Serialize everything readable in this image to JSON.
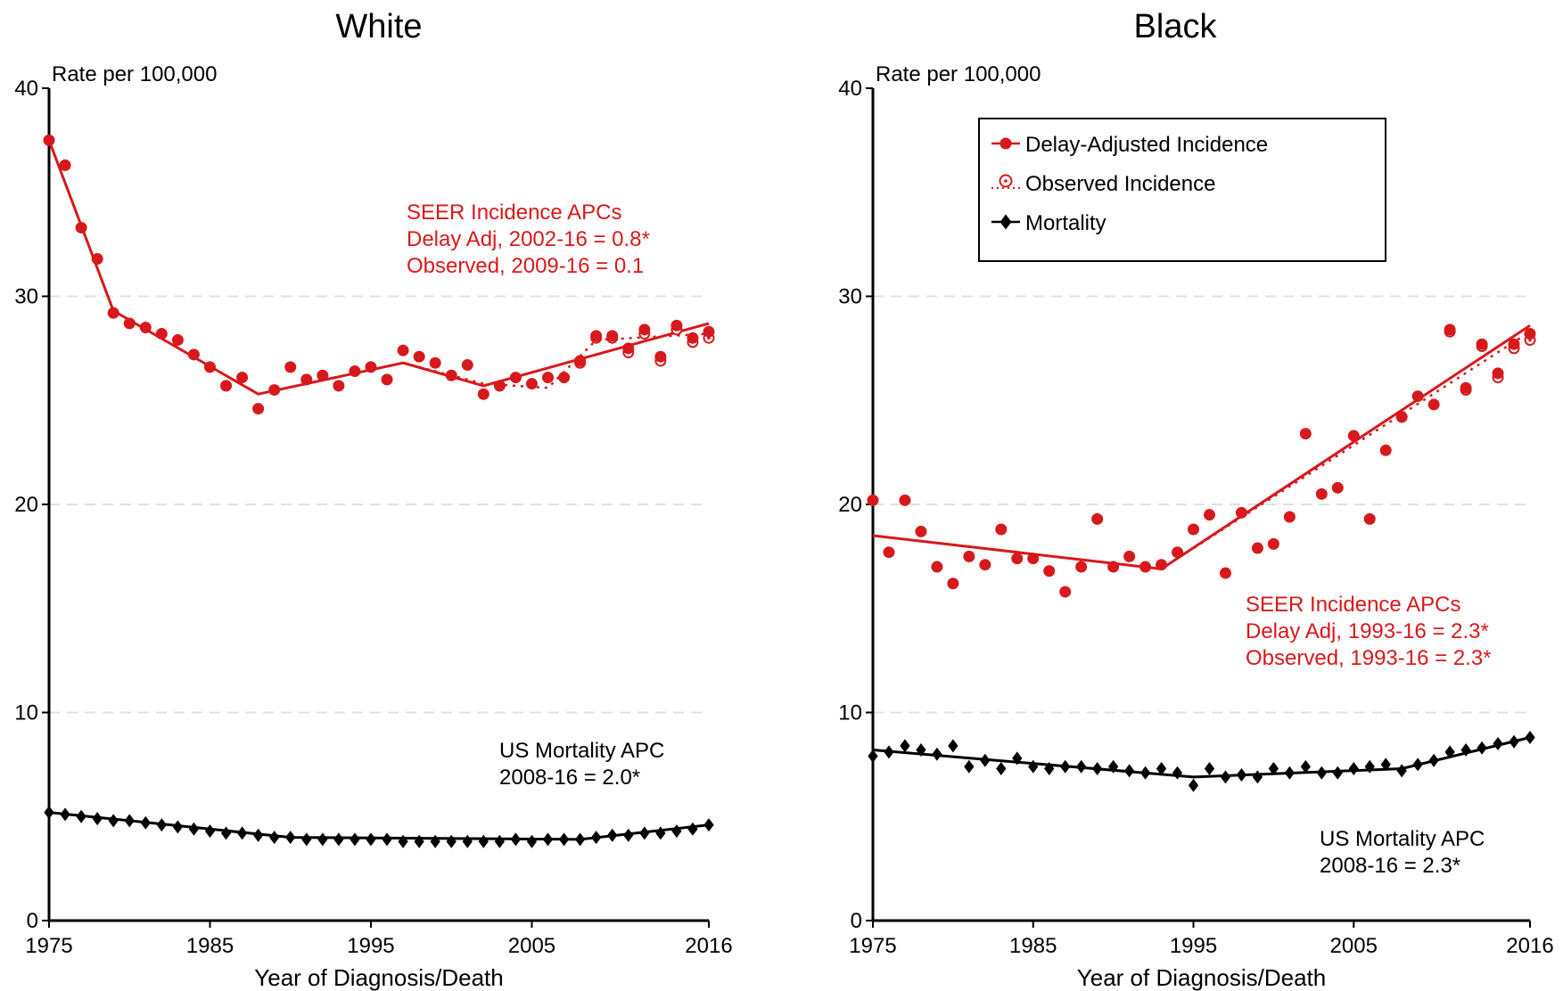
{
  "chart_data": [
    {
      "type": "line",
      "title": "White",
      "ylabel": "Rate per 100,000",
      "xlabel": "Year of Diagnosis/Death",
      "xlim": [
        1975,
        2016
      ],
      "ylim": [
        0,
        40
      ],
      "xticks": [
        1975,
        1985,
        1995,
        2005,
        2016
      ],
      "yticks": [
        0,
        10,
        20,
        30,
        40
      ],
      "grid": "horizontal dashed at 10, 20, 30",
      "legend": "none",
      "colors": {
        "incidence": "#d7191c",
        "mortality": "#000000",
        "grid": "#e0e0e0"
      },
      "x": [
        1975,
        1976,
        1977,
        1978,
        1979,
        1980,
        1981,
        1982,
        1983,
        1984,
        1985,
        1986,
        1987,
        1988,
        1989,
        1990,
        1991,
        1992,
        1993,
        1994,
        1995,
        1996,
        1997,
        1998,
        1999,
        2000,
        2001,
        2002,
        2003,
        2004,
        2005,
        2006,
        2007,
        2008,
        2009,
        2010,
        2011,
        2012,
        2013,
        2014,
        2015,
        2016
      ],
      "series": [
        {
          "role": "delay-adjusted-incidence",
          "marker": "filled-circle",
          "values": [
            37.5,
            36.3,
            33.3,
            31.8,
            29.2,
            28.7,
            28.5,
            28.2,
            27.9,
            27.2,
            26.6,
            25.7,
            26.1,
            24.6,
            25.5,
            26.6,
            26.0,
            26.2,
            25.7,
            26.4,
            26.6,
            26.0,
            27.4,
            27.1,
            26.8,
            26.2,
            26.7,
            25.3,
            25.7,
            26.1,
            25.8,
            26.1,
            26.1,
            26.9,
            28.1,
            28.1,
            27.5,
            28.4,
            27.1,
            28.6,
            28.0,
            28.3
          ]
        },
        {
          "role": "observed-incidence",
          "marker": "open-circle",
          "values": [
            37.5,
            36.3,
            33.3,
            31.8,
            29.2,
            28.7,
            28.5,
            28.2,
            27.9,
            27.2,
            26.6,
            25.7,
            26.1,
            24.6,
            25.5,
            26.6,
            26.0,
            26.2,
            25.7,
            26.4,
            26.6,
            26.0,
            27.4,
            27.1,
            26.8,
            26.2,
            26.7,
            25.3,
            25.7,
            26.1,
            25.8,
            26.1,
            26.1,
            26.8,
            28.0,
            28.0,
            27.3,
            28.2,
            26.9,
            28.4,
            27.8,
            28.0
          ]
        },
        {
          "role": "mortality",
          "marker": "filled-diamond",
          "values": [
            5.2,
            5.1,
            5.0,
            4.9,
            4.8,
            4.8,
            4.7,
            4.6,
            4.5,
            4.4,
            4.3,
            4.2,
            4.2,
            4.1,
            4.0,
            4.0,
            3.9,
            3.9,
            3.9,
            3.9,
            3.9,
            3.9,
            3.8,
            3.8,
            3.8,
            3.8,
            3.8,
            3.8,
            3.8,
            3.9,
            3.8,
            3.9,
            3.9,
            3.9,
            4.0,
            4.1,
            4.1,
            4.2,
            4.2,
            4.3,
            4.4,
            4.6
          ]
        }
      ],
      "fits": {
        "delay_adjusted": [
          [
            1975,
            37.5
          ],
          [
            1979,
            29.3
          ],
          [
            1988,
            25.3
          ],
          [
            1997,
            26.8
          ],
          [
            2002,
            25.7
          ],
          [
            2016,
            28.7
          ]
        ],
        "observed": [
          [
            1975,
            37.5
          ],
          [
            1979,
            29.3
          ],
          [
            1988,
            25.3
          ],
          [
            1997,
            26.8
          ],
          [
            2002,
            25.8
          ],
          [
            2006,
            25.6
          ],
          [
            2009,
            27.9
          ],
          [
            2016,
            28.2
          ]
        ],
        "mortality": [
          [
            1975,
            5.2
          ],
          [
            1990,
            4.0
          ],
          [
            2008,
            3.9
          ],
          [
            2016,
            4.6
          ]
        ]
      },
      "annotations": {
        "incidence": [
          "SEER Incidence APCs",
          "Delay Adj, 2002-16 = 0.8*",
          "Observed, 2009-16 = 0.1"
        ],
        "mortality": [
          "US Mortality APC",
          "2008-16 = 2.0*"
        ]
      }
    },
    {
      "type": "line",
      "title": "Black",
      "ylabel": "Rate per 100,000",
      "xlabel": "Year of Diagnosis/Death",
      "xlim": [
        1975,
        2016
      ],
      "ylim": [
        0,
        40
      ],
      "xticks": [
        1975,
        1985,
        1995,
        2005,
        2016
      ],
      "yticks": [
        0,
        10,
        20,
        30,
        40
      ],
      "grid": "horizontal dashed at 10, 20, 30",
      "legend": "top-left",
      "colors": {
        "incidence": "#d7191c",
        "mortality": "#000000",
        "grid": "#e0e0e0"
      },
      "x": [
        1975,
        1976,
        1977,
        1978,
        1979,
        1980,
        1981,
        1982,
        1983,
        1984,
        1985,
        1986,
        1987,
        1988,
        1989,
        1990,
        1991,
        1992,
        1993,
        1994,
        1995,
        1996,
        1997,
        1998,
        1999,
        2000,
        2001,
        2002,
        2003,
        2004,
        2005,
        2006,
        2007,
        2008,
        2009,
        2010,
        2011,
        2012,
        2013,
        2014,
        2015,
        2016
      ],
      "series": [
        {
          "name": "Delay-Adjusted Incidence",
          "role": "delay-adjusted-incidence",
          "marker": "filled-circle",
          "values": [
            20.2,
            17.7,
            20.2,
            18.7,
            17.0,
            16.2,
            17.5,
            17.1,
            18.8,
            17.4,
            17.4,
            16.8,
            15.8,
            17.0,
            19.3,
            17.0,
            17.5,
            17.0,
            17.1,
            17.7,
            18.8,
            19.5,
            16.7,
            19.6,
            17.9,
            18.1,
            19.4,
            23.4,
            20.5,
            20.8,
            23.3,
            19.3,
            22.6,
            24.2,
            25.2,
            24.8,
            28.4,
            25.6,
            27.7,
            26.3,
            27.7,
            28.2
          ]
        },
        {
          "name": "Observed Incidence",
          "role": "observed-incidence",
          "marker": "open-circle",
          "values": [
            20.2,
            17.7,
            20.2,
            18.7,
            17.0,
            16.2,
            17.5,
            17.1,
            18.8,
            17.4,
            17.4,
            16.8,
            15.8,
            17.0,
            19.3,
            17.0,
            17.5,
            17.0,
            17.1,
            17.7,
            18.8,
            19.5,
            16.7,
            19.6,
            17.9,
            18.1,
            19.4,
            23.4,
            20.5,
            20.8,
            23.3,
            19.3,
            22.6,
            24.2,
            25.2,
            24.8,
            28.3,
            25.5,
            27.6,
            26.1,
            27.5,
            27.9
          ]
        },
        {
          "name": "Mortality",
          "role": "mortality",
          "marker": "filled-diamond",
          "values": [
            7.9,
            8.1,
            8.4,
            8.2,
            8.0,
            8.4,
            7.4,
            7.7,
            7.3,
            7.8,
            7.4,
            7.3,
            7.4,
            7.4,
            7.3,
            7.4,
            7.2,
            7.1,
            7.3,
            7.1,
            6.5,
            7.3,
            6.9,
            7.0,
            6.9,
            7.3,
            7.1,
            7.4,
            7.1,
            7.1,
            7.3,
            7.4,
            7.5,
            7.2,
            7.5,
            7.7,
            8.1,
            8.2,
            8.3,
            8.5,
            8.6,
            8.8
          ]
        }
      ],
      "fits": {
        "delay_adjusted": [
          [
            1975,
            18.5
          ],
          [
            1993,
            16.9
          ],
          [
            2016,
            28.6
          ]
        ],
        "observed": [
          [
            1975,
            18.5
          ],
          [
            1993,
            16.9
          ],
          [
            2016,
            28.3
          ]
        ],
        "mortality": [
          [
            1975,
            8.2
          ],
          [
            1995,
            6.9
          ],
          [
            2008,
            7.3
          ],
          [
            2016,
            8.8
          ]
        ]
      },
      "annotations": {
        "incidence": [
          "SEER Incidence APCs",
          "Delay Adj, 1993-16 = 2.3*",
          "Observed, 1993-16 = 2.3*"
        ],
        "mortality": [
          "US Mortality APC",
          "2008-16 = 2.3*"
        ]
      }
    }
  ]
}
